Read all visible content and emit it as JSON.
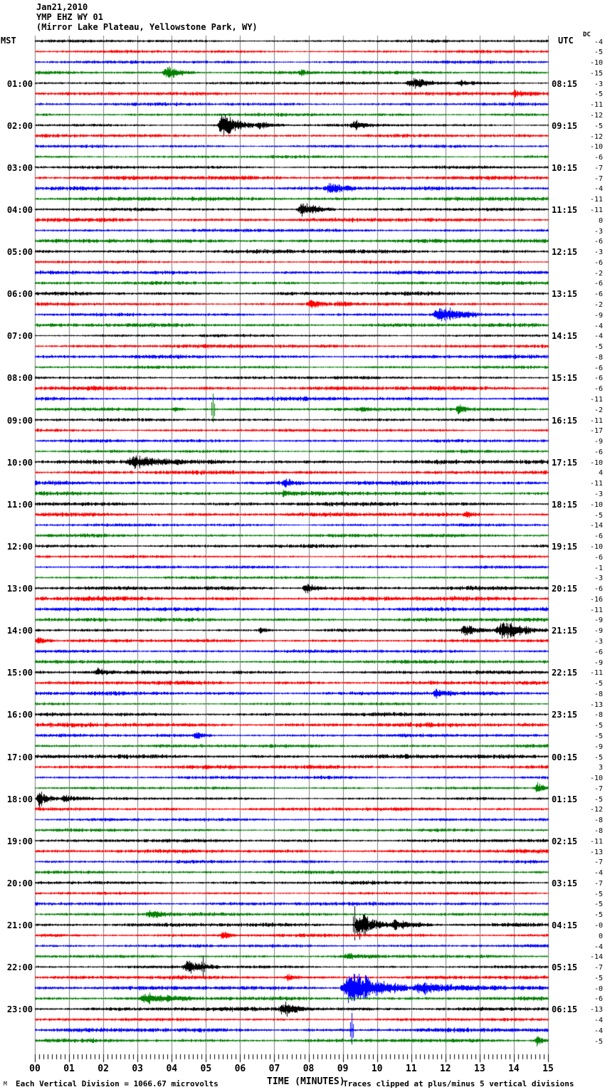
{
  "header": {
    "date": "Jan21,2010",
    "station": "YMP EHZ WY 01",
    "location": "(Mirror Lake Plateau, Yellowstone Park, WY)"
  },
  "axes": {
    "left_label": "MST",
    "right_label": "UTC",
    "dc_label": "DC",
    "x_title": "TIME (MINUTES)",
    "minute_labels": [
      "00",
      "01",
      "02",
      "03",
      "04",
      "05",
      "06",
      "07",
      "08",
      "09",
      "10",
      "11",
      "12",
      "13",
      "14",
      "15"
    ]
  },
  "footer": {
    "left_note": "Each Vertical Division = 1066.67 microvolts",
    "right_note": "Traces clipped at plus/minus 5 vertical divisions",
    "corner_mark": "M"
  },
  "colors": {
    "trace_cycle": [
      "#000000",
      "#ff0000",
      "#0000ff",
      "#008000"
    ],
    "grid": "#808080",
    "background": "#ffffff",
    "text": "#000000"
  },
  "chart_data": {
    "type": "line",
    "subtype": "helicorder-seismogram",
    "title": "YMP EHZ WY 01 — Jan21,2010 — Mirror Lake Plateau, Yellowstone Park, WY",
    "xlabel": "TIME (MINUTES)",
    "x_range": [
      0,
      15
    ],
    "minutes_per_line": 15,
    "num_lines": 96,
    "line_color_cycle": [
      "black",
      "red",
      "blue",
      "green"
    ],
    "mst_hour_labels": [
      {
        "row": 4,
        "label": "01:00"
      },
      {
        "row": 8,
        "label": "02:00"
      },
      {
        "row": 12,
        "label": "03:00"
      },
      {
        "row": 16,
        "label": "04:00"
      },
      {
        "row": 20,
        "label": "05:00"
      },
      {
        "row": 24,
        "label": "06:00"
      },
      {
        "row": 28,
        "label": "07:00"
      },
      {
        "row": 32,
        "label": "08:00"
      },
      {
        "row": 36,
        "label": "09:00"
      },
      {
        "row": 40,
        "label": "10:00"
      },
      {
        "row": 44,
        "label": "11:00"
      },
      {
        "row": 48,
        "label": "12:00"
      },
      {
        "row": 52,
        "label": "13:00"
      },
      {
        "row": 56,
        "label": "14:00"
      },
      {
        "row": 60,
        "label": "15:00"
      },
      {
        "row": 64,
        "label": "16:00"
      },
      {
        "row": 68,
        "label": "17:00"
      },
      {
        "row": 72,
        "label": "18:00"
      },
      {
        "row": 76,
        "label": "19:00"
      },
      {
        "row": 80,
        "label": "20:00"
      },
      {
        "row": 84,
        "label": "21:00"
      },
      {
        "row": 88,
        "label": "22:00"
      },
      {
        "row": 92,
        "label": "23:00"
      }
    ],
    "utc_hour_labels": [
      {
        "row": 4,
        "label": "08:15"
      },
      {
        "row": 8,
        "label": "09:15"
      },
      {
        "row": 12,
        "label": "10:15"
      },
      {
        "row": 16,
        "label": "11:15"
      },
      {
        "row": 20,
        "label": "12:15"
      },
      {
        "row": 24,
        "label": "13:15"
      },
      {
        "row": 28,
        "label": "14:15"
      },
      {
        "row": 32,
        "label": "15:15"
      },
      {
        "row": 36,
        "label": "16:15"
      },
      {
        "row": 40,
        "label": "17:15"
      },
      {
        "row": 44,
        "label": "18:15"
      },
      {
        "row": 48,
        "label": "19:15"
      },
      {
        "row": 52,
        "label": "20:15"
      },
      {
        "row": 56,
        "label": "21:15"
      },
      {
        "row": 60,
        "label": "22:15"
      },
      {
        "row": 64,
        "label": "23:15"
      },
      {
        "row": 68,
        "label": "00:15"
      },
      {
        "row": 72,
        "label": "01:15"
      },
      {
        "row": 76,
        "label": "02:15"
      },
      {
        "row": 80,
        "label": "03:15"
      },
      {
        "row": 84,
        "label": "04:15"
      },
      {
        "row": 88,
        "label": "05:15"
      },
      {
        "row": 92,
        "label": "06:15"
      }
    ],
    "dc_offsets": [
      "-4",
      "-5",
      "-10",
      "-15",
      "-3",
      "-5",
      "-11",
      "-12",
      "-5",
      "-12",
      "-10",
      "-6",
      "-7",
      "-7",
      "-4",
      "-11",
      "-11",
      "0",
      "-3",
      "-6",
      "-3",
      "-6",
      "-2",
      "-6",
      "-6",
      "-2",
      "-9",
      "-4",
      "-4",
      "-5",
      "-8",
      "-6",
      "-6",
      "-6",
      "-11",
      "-2",
      "-11",
      "-17",
      "-9",
      "-6",
      "-10",
      "4",
      "-11",
      "-3",
      "-10",
      "-5",
      "-14",
      "-6",
      "-10",
      "-6",
      "-1",
      "-3",
      "-6",
      "-16",
      "-11",
      "-9",
      "-9",
      "-3",
      "-6",
      "-9",
      "-11",
      "-5",
      "-8",
      "-13",
      "-8",
      "-5",
      "-5",
      "-9",
      "-5",
      "3",
      "-10",
      "-7",
      "-5",
      "-12",
      "-8",
      "-8",
      "-11",
      "-13",
      "-7",
      "-4",
      "-7",
      "-5",
      "-5",
      "-5",
      "-0",
      "0",
      "-4",
      "-14",
      "-7",
      "-5",
      "-0",
      "-6",
      "-13",
      "-4",
      "-4",
      "-5"
    ],
    "events": [
      {
        "row": 3,
        "kind": "burst",
        "t0": 3.7,
        "t1": 4.7,
        "amp": 9
      },
      {
        "row": 3,
        "kind": "burst",
        "t0": 7.7,
        "t1": 8.1,
        "amp": 4
      },
      {
        "row": 4,
        "kind": "burst",
        "t0": 10.8,
        "t1": 12.2,
        "amp": 7
      },
      {
        "row": 4,
        "kind": "burst",
        "t0": 12.2,
        "t1": 13.6,
        "amp": 3.5
      },
      {
        "row": 5,
        "kind": "burst",
        "t0": 13.9,
        "t1": 14.7,
        "amp": 4
      },
      {
        "row": 8,
        "kind": "burst",
        "t0": 5.3,
        "t1": 6.4,
        "amp": 18
      },
      {
        "row": 8,
        "kind": "burst",
        "t0": 6.4,
        "t1": 7.3,
        "amp": 5
      },
      {
        "row": 8,
        "kind": "burst",
        "t0": 9.2,
        "t1": 9.9,
        "amp": 6
      },
      {
        "row": 14,
        "kind": "burst",
        "t0": 8.4,
        "t1": 9.4,
        "amp": 7
      },
      {
        "row": 16,
        "kind": "burst",
        "t0": 7.6,
        "t1": 8.8,
        "amp": 10
      },
      {
        "row": 25,
        "kind": "burst",
        "t0": 7.9,
        "t1": 8.7,
        "amp": 6
      },
      {
        "row": 25,
        "kind": "burst",
        "t0": 8.7,
        "t1": 9.7,
        "amp": 3
      },
      {
        "row": 26,
        "kind": "burst",
        "t0": 11.6,
        "t1": 12.9,
        "amp": 12
      },
      {
        "row": 35,
        "kind": "burst",
        "t0": 4.0,
        "t1": 4.4,
        "amp": 4
      },
      {
        "row": 35,
        "kind": "spike",
        "t": 5.2,
        "amp": 22
      },
      {
        "row": 35,
        "kind": "burst",
        "t0": 9.5,
        "t1": 9.8,
        "amp": 3
      },
      {
        "row": 35,
        "kind": "burst",
        "t0": 12.3,
        "t1": 12.7,
        "amp": 7
      },
      {
        "row": 40,
        "kind": "burst",
        "t0": 2.6,
        "t1": 4.3,
        "amp": 8
      },
      {
        "row": 42,
        "kind": "burst",
        "t0": 7.2,
        "t1": 7.8,
        "amp": 5
      },
      {
        "row": 43,
        "kind": "burst",
        "t0": 7.2,
        "t1": 7.6,
        "amp": 3.5
      },
      {
        "row": 45,
        "kind": "burst",
        "t0": 12.5,
        "t1": 13.0,
        "amp": 5
      },
      {
        "row": 52,
        "kind": "burst",
        "t0": 7.8,
        "t1": 8.5,
        "amp": 8
      },
      {
        "row": 56,
        "kind": "burst",
        "t0": 6.5,
        "t1": 7.0,
        "amp": 4
      },
      {
        "row": 56,
        "kind": "burst",
        "t0": 12.4,
        "t1": 13.4,
        "amp": 8
      },
      {
        "row": 56,
        "kind": "burst",
        "t0": 13.4,
        "t1": 15.0,
        "amp": 14
      },
      {
        "row": 57,
        "kind": "burst",
        "t0": 0.0,
        "t1": 0.6,
        "amp": 5
      },
      {
        "row": 60,
        "kind": "burst",
        "t0": 1.7,
        "t1": 2.3,
        "amp": 5
      },
      {
        "row": 62,
        "kind": "burst",
        "t0": 11.6,
        "t1": 12.2,
        "amp": 5
      },
      {
        "row": 66,
        "kind": "burst",
        "t0": 4.6,
        "t1": 5.2,
        "amp": 5
      },
      {
        "row": 71,
        "kind": "burst",
        "t0": 14.6,
        "t1": 15.0,
        "amp": 8
      },
      {
        "row": 72,
        "kind": "burst",
        "t0": 0.0,
        "t1": 0.7,
        "amp": 12
      },
      {
        "row": 72,
        "kind": "burst",
        "t0": 0.7,
        "t1": 1.7,
        "amp": 5
      },
      {
        "row": 83,
        "kind": "burst",
        "t0": 3.2,
        "t1": 4.0,
        "amp": 6
      },
      {
        "row": 84,
        "kind": "spike",
        "t": 9.35,
        "amp": 26
      },
      {
        "row": 84,
        "kind": "burst",
        "t0": 9.3,
        "t1": 10.3,
        "amp": 20
      },
      {
        "row": 84,
        "kind": "burst",
        "t0": 10.3,
        "t1": 11.6,
        "amp": 7
      },
      {
        "row": 85,
        "kind": "burst",
        "t0": 5.4,
        "t1": 5.9,
        "amp": 6
      },
      {
        "row": 87,
        "kind": "burst",
        "t0": 9.0,
        "t1": 9.9,
        "amp": 4
      },
      {
        "row": 88,
        "kind": "burst",
        "t0": 4.3,
        "t1": 5.4,
        "amp": 9
      },
      {
        "row": 88,
        "kind": "spike",
        "t": 4.9,
        "amp": 16
      },
      {
        "row": 89,
        "kind": "burst",
        "t0": 7.3,
        "t1": 7.8,
        "amp": 4
      },
      {
        "row": 90,
        "kind": "burst",
        "t0": 8.9,
        "t1": 10.9,
        "amp": 27
      },
      {
        "row": 90,
        "kind": "burst",
        "t0": 10.9,
        "t1": 13.5,
        "amp": 8
      },
      {
        "row": 91,
        "kind": "burst",
        "t0": 3.0,
        "t1": 4.6,
        "amp": 6
      },
      {
        "row": 92,
        "kind": "burst",
        "t0": 7.1,
        "t1": 8.1,
        "amp": 9
      },
      {
        "row": 94,
        "kind": "spike",
        "t": 9.25,
        "amp": 24
      },
      {
        "row": 95,
        "kind": "burst",
        "t0": 14.6,
        "t1": 15.0,
        "amp": 8
      }
    ],
    "clip_note": "Traces clipped at plus/minus 5 vertical divisions",
    "vertical_division_microvolts": 1066.67
  }
}
